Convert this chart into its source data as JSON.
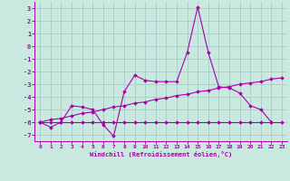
{
  "xlabel": "Windchill (Refroidissement éolien,°C)",
  "xlim": [
    -0.5,
    23.5
  ],
  "ylim": [
    -7.5,
    3.5
  ],
  "yticks": [
    3,
    2,
    1,
    0,
    -1,
    -2,
    -3,
    -4,
    -5,
    -6,
    -7
  ],
  "xticks": [
    0,
    1,
    2,
    3,
    4,
    5,
    6,
    7,
    8,
    9,
    10,
    11,
    12,
    13,
    14,
    15,
    16,
    17,
    18,
    19,
    20,
    21,
    22,
    23
  ],
  "bg_color": "#c8e8e0",
  "grid_color": "#a0c8c0",
  "line_color": "#aa00aa",
  "line1_x": [
    0,
    1,
    2,
    3,
    4,
    5,
    6,
    7,
    8,
    9,
    10,
    11,
    12,
    13,
    14,
    15,
    16,
    17,
    18,
    19,
    20,
    21,
    22
  ],
  "line1_y": [
    -6.0,
    -6.4,
    -6.0,
    -4.7,
    -4.8,
    -5.0,
    -6.2,
    -7.1,
    -3.6,
    -2.3,
    -2.7,
    -2.8,
    -2.8,
    -2.8,
    -0.5,
    3.1,
    -0.5,
    -3.2,
    -3.3,
    -3.7,
    -4.7,
    -5.0,
    -6.0
  ],
  "line2_x": [
    0,
    1,
    2,
    3,
    4,
    5,
    6,
    7,
    8,
    9,
    10,
    11,
    12,
    13,
    14,
    15,
    16,
    17,
    18,
    19,
    20,
    21,
    22,
    23
  ],
  "line2_y": [
    -6.0,
    -6.0,
    -6.0,
    -6.0,
    -6.0,
    -6.0,
    -6.0,
    -6.0,
    -6.0,
    -6.0,
    -6.0,
    -6.0,
    -6.0,
    -6.0,
    -6.0,
    -6.0,
    -6.0,
    -6.0,
    -6.0,
    -6.0,
    -6.0,
    -6.0,
    -6.0,
    -6.0
  ],
  "line3_x": [
    0,
    1,
    2,
    3,
    4,
    5,
    6,
    7,
    8,
    9,
    10,
    11,
    12,
    13,
    14,
    15,
    16,
    17,
    18,
    19,
    20,
    21,
    22,
    23
  ],
  "line3_y": [
    -6.0,
    -5.8,
    -5.7,
    -5.5,
    -5.3,
    -5.2,
    -5.0,
    -4.8,
    -4.7,
    -4.5,
    -4.4,
    -4.2,
    -4.1,
    -3.9,
    -3.8,
    -3.6,
    -3.5,
    -3.3,
    -3.2,
    -3.0,
    -2.9,
    -2.8,
    -2.6,
    -2.5
  ]
}
